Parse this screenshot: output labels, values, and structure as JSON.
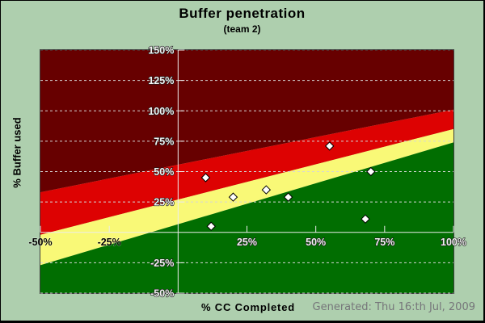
{
  "header": {
    "title": "Buffer penetration",
    "subtitle": "(team 2)"
  },
  "axes": {
    "y_title": "% Buffer used",
    "x_title": "% CC Completed"
  },
  "footer": {
    "generated": "Generated: Thu 16:th Jul, 2009"
  },
  "colors": {
    "background": "#aecfae",
    "title_text": "#000000",
    "generated_text": "#76767a",
    "plot_border": "#3d3d3d",
    "gridline": "#d6d6d6",
    "gridline_dark": "#4f4f4f",
    "axis_line": "#ececec"
  },
  "chart_data": {
    "type": "scatter",
    "title": "Buffer penetration",
    "subtitle": "(team 2)",
    "xlabel": "% CC Completed",
    "ylabel": "% Buffer used",
    "xlim": [
      -50,
      100
    ],
    "ylim": [
      -50,
      150
    ],
    "grid": {
      "horizontal": "dashed",
      "vertical": "none"
    },
    "legend": "none",
    "x_ticks": [
      {
        "v": -50,
        "label": "-50%",
        "tone": "dark"
      },
      {
        "v": -25,
        "label": "-25%",
        "tone": "dark"
      },
      {
        "v": 0,
        "label": "",
        "tone": "light"
      },
      {
        "v": 25,
        "label": "25%",
        "tone": "light"
      },
      {
        "v": 50,
        "label": "50%",
        "tone": "light"
      },
      {
        "v": 75,
        "label": "75%",
        "tone": "light"
      },
      {
        "v": 100,
        "label": "100%",
        "tone": "light"
      }
    ],
    "y_ticks": [
      {
        "v": 150,
        "label": "150%"
      },
      {
        "v": 125,
        "label": "125%"
      },
      {
        "v": 100,
        "label": "100%"
      },
      {
        "v": 75,
        "label": "75%"
      },
      {
        "v": 50,
        "label": "50%"
      },
      {
        "v": 25,
        "label": "25%"
      },
      {
        "v": 0,
        "label": ""
      },
      {
        "v": -25,
        "label": "-25%"
      },
      {
        "v": -50,
        "label": "-50%"
      }
    ],
    "zones": [
      {
        "name": "dark-red",
        "color": "#670000"
      },
      {
        "name": "red",
        "color": "#dd0202"
      },
      {
        "name": "yellow",
        "color": "#f9f977"
      },
      {
        "name": "green",
        "color": "#016e01"
      }
    ],
    "zone_boundaries": [
      {
        "between": "dark-red/red",
        "x": [
          -50,
          100
        ],
        "y": [
          33,
          101
        ]
      },
      {
        "between": "red/yellow",
        "x": [
          -50,
          100
        ],
        "y": [
          -2,
          85
        ]
      },
      {
        "between": "yellow/green",
        "x": [
          -50,
          100
        ],
        "y": [
          -27,
          74
        ]
      }
    ],
    "points": [
      {
        "x": 10,
        "y": 45
      },
      {
        "x": 12,
        "y": 5
      },
      {
        "x": 20,
        "y": 29
      },
      {
        "x": 32,
        "y": 35
      },
      {
        "x": 40,
        "y": 29
      },
      {
        "x": 55,
        "y": 71
      },
      {
        "x": 68,
        "y": 11
      },
      {
        "x": 70,
        "y": 50
      }
    ],
    "marker": {
      "shape": "diamond",
      "fill": "#ffffff",
      "stroke": "#000000",
      "size": 10
    }
  }
}
